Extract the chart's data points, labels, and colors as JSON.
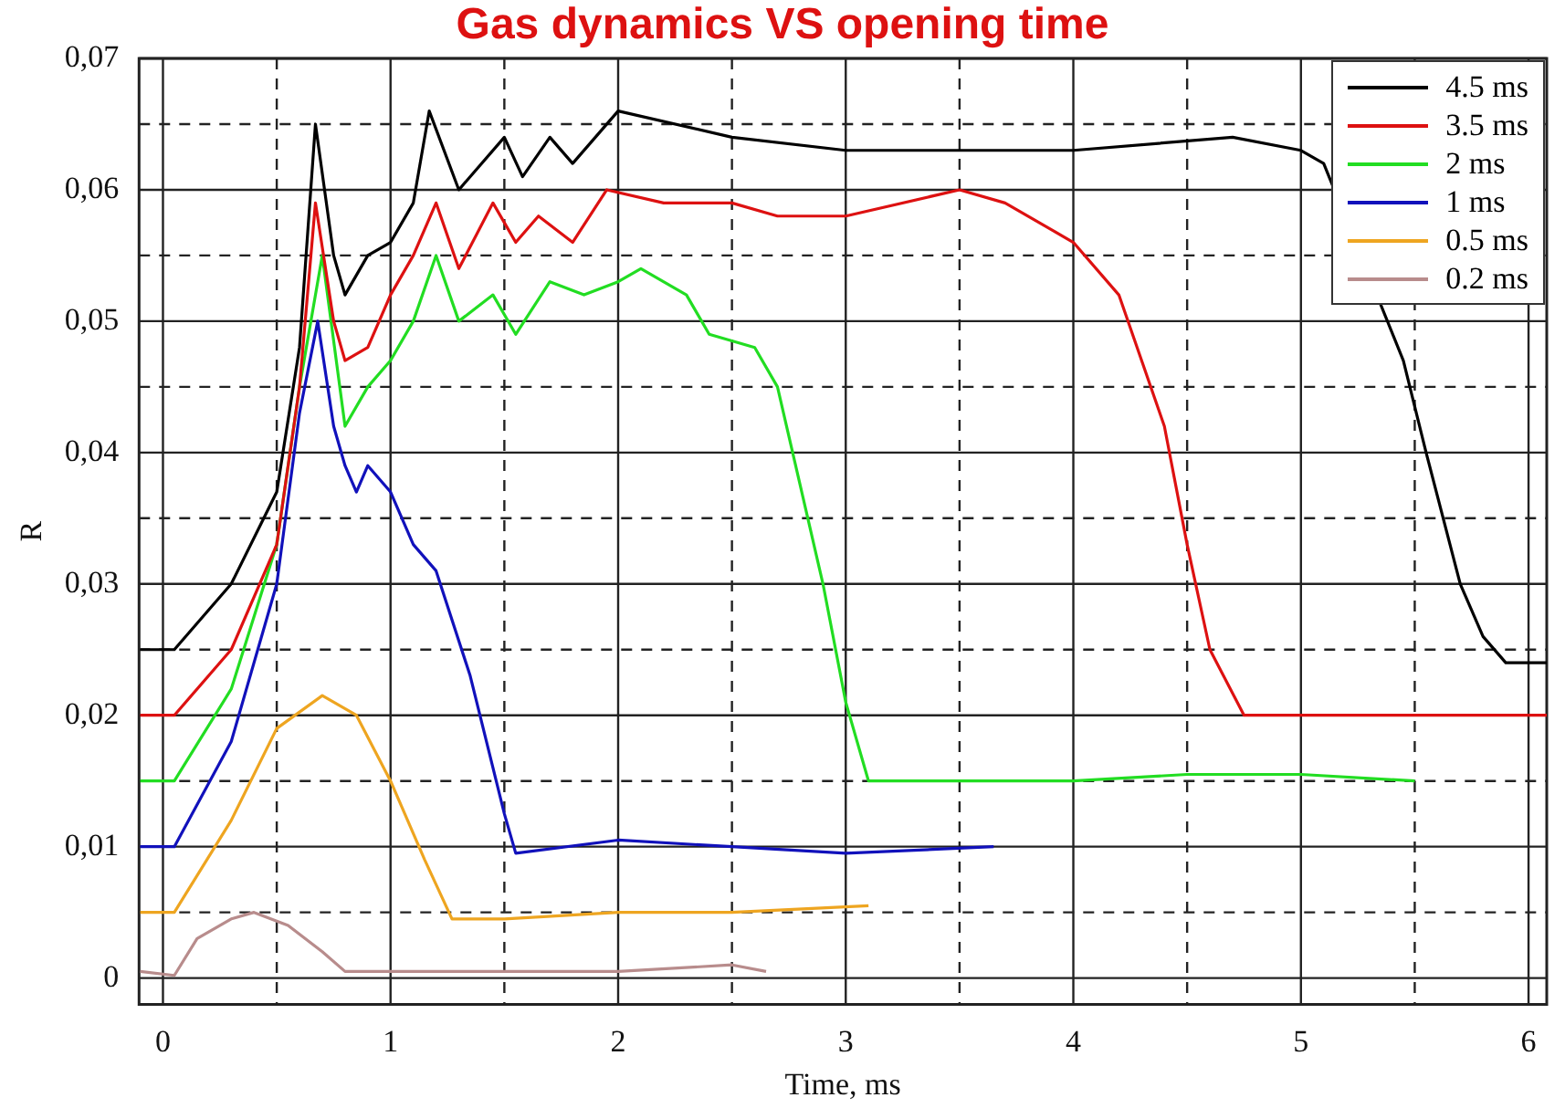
{
  "chart_data": {
    "type": "line",
    "title": "Gas dynamics VS opening time",
    "xlabel": "Time, ms",
    "ylabel": "R",
    "xlim": [
      -0.105,
      6.08
    ],
    "ylim": [
      -0.002,
      0.07
    ],
    "xticks": [
      0,
      {
        "value": 0.5,
        "label": null
      },
      1,
      {
        "value": 1.5,
        "label": null
      },
      2,
      {
        "value": 2.5,
        "label": null
      },
      3,
      {
        "value": 3.5,
        "label": null
      },
      4,
      {
        "value": 4.5,
        "label": null
      },
      5,
      {
        "value": 5.5,
        "label": null
      },
      6
    ],
    "yticks": [
      0,
      {
        "value": 0.005,
        "label": null
      },
      {
        "value": 0.01,
        "label": "0,01"
      },
      {
        "value": 0.015,
        "label": null
      },
      {
        "value": 0.02,
        "label": "0,02"
      },
      {
        "value": 0.025,
        "label": null
      },
      {
        "value": 0.03,
        "label": "0,03"
      },
      {
        "value": 0.035,
        "label": null
      },
      {
        "value": 0.04,
        "label": "0,04"
      },
      {
        "value": 0.045,
        "label": null
      },
      {
        "value": 0.05,
        "label": "0,05"
      },
      {
        "value": 0.055,
        "label": null
      },
      {
        "value": 0.06,
        "label": "0,06"
      },
      {
        "value": 0.065,
        "label": null
      },
      {
        "value": 0.07,
        "label": "0,07"
      }
    ],
    "grid": true,
    "legend": "top right",
    "marker": "none",
    "line_style": "solid",
    "series": [
      {
        "name": "4.5 ms",
        "color": "#000000",
        "x": [
          -0.1,
          0.05,
          0.3,
          0.5,
          0.6,
          0.67,
          0.75,
          0.8,
          0.9,
          1.0,
          1.1,
          1.17,
          1.3,
          1.5,
          1.58,
          1.7,
          1.8,
          2.0,
          2.5,
          3.0,
          4.0,
          4.7,
          5.0,
          5.1,
          5.45,
          5.55,
          5.7,
          5.8,
          5.9,
          6.08
        ],
        "values": [
          0.025,
          0.025,
          0.03,
          0.037,
          0.048,
          0.065,
          0.055,
          0.052,
          0.055,
          0.056,
          0.059,
          0.066,
          0.06,
          0.064,
          0.061,
          0.064,
          0.062,
          0.066,
          0.064,
          0.063,
          0.063,
          0.064,
          0.063,
          0.062,
          0.047,
          0.04,
          0.03,
          0.026,
          0.024,
          0.024
        ]
      },
      {
        "name": "3.5 ms",
        "color": "#dd1111",
        "x": [
          -0.1,
          0.05,
          0.3,
          0.5,
          0.6,
          0.67,
          0.75,
          0.8,
          0.9,
          1.0,
          1.1,
          1.2,
          1.3,
          1.45,
          1.55,
          1.65,
          1.8,
          1.95,
          2.2,
          2.5,
          2.7,
          3.0,
          3.5,
          3.7,
          3.9,
          4.0,
          4.2,
          4.4,
          4.5,
          4.6,
          4.75,
          5.0,
          6.08
        ],
        "values": [
          0.02,
          0.02,
          0.025,
          0.033,
          0.045,
          0.059,
          0.05,
          0.047,
          0.048,
          0.052,
          0.055,
          0.059,
          0.054,
          0.059,
          0.056,
          0.058,
          0.056,
          0.06,
          0.059,
          0.059,
          0.058,
          0.058,
          0.06,
          0.059,
          0.057,
          0.056,
          0.052,
          0.042,
          0.033,
          0.025,
          0.02,
          0.02,
          0.02
        ]
      },
      {
        "name": "2 ms",
        "color": "#22dd22",
        "x": [
          -0.1,
          0.05,
          0.3,
          0.5,
          0.6,
          0.7,
          0.8,
          0.9,
          1.0,
          1.1,
          1.2,
          1.3,
          1.45,
          1.55,
          1.7,
          1.85,
          2.0,
          2.1,
          2.3,
          2.4,
          2.6,
          2.7,
          2.9,
          3.0,
          3.1,
          3.5,
          4.0,
          4.5,
          5.0,
          5.5
        ],
        "values": [
          0.015,
          0.015,
          0.022,
          0.033,
          0.045,
          0.055,
          0.042,
          0.045,
          0.047,
          0.05,
          0.055,
          0.05,
          0.052,
          0.049,
          0.053,
          0.052,
          0.053,
          0.054,
          0.052,
          0.049,
          0.048,
          0.045,
          0.03,
          0.021,
          0.015,
          0.015,
          0.015,
          0.0155,
          0.0155,
          0.015
        ]
      },
      {
        "name": "1 ms",
        "color": "#1111bb",
        "x": [
          -0.1,
          0.05,
          0.3,
          0.5,
          0.6,
          0.68,
          0.75,
          0.8,
          0.85,
          0.9,
          1.0,
          1.1,
          1.2,
          1.35,
          1.5,
          1.55,
          2.0,
          2.5,
          3.0,
          3.65
        ],
        "values": [
          0.01,
          0.01,
          0.018,
          0.03,
          0.043,
          0.05,
          0.042,
          0.039,
          0.037,
          0.039,
          0.037,
          0.033,
          0.031,
          0.023,
          0.0125,
          0.0095,
          0.0105,
          0.01,
          0.0095,
          0.01
        ]
      },
      {
        "name": "0.5 ms",
        "color": "#eea520",
        "x": [
          -0.1,
          0.05,
          0.3,
          0.5,
          0.7,
          0.85,
          1.0,
          1.15,
          1.27,
          1.5,
          2.0,
          2.5,
          3.1
        ],
        "values": [
          0.005,
          0.005,
          0.012,
          0.019,
          0.0215,
          0.02,
          0.015,
          0.009,
          0.0045,
          0.0045,
          0.005,
          0.005,
          0.0055
        ]
      },
      {
        "name": "0.2 ms",
        "color": "#b88c8c",
        "x": [
          -0.1,
          0.05,
          0.15,
          0.3,
          0.4,
          0.55,
          0.7,
          0.8,
          1.0,
          1.5,
          2.0,
          2.5,
          2.65
        ],
        "values": [
          0.0005,
          0.0002,
          0.003,
          0.0045,
          0.005,
          0.004,
          0.002,
          0.0005,
          0.0005,
          0.0005,
          0.0005,
          0.001,
          0.0005
        ]
      }
    ]
  }
}
